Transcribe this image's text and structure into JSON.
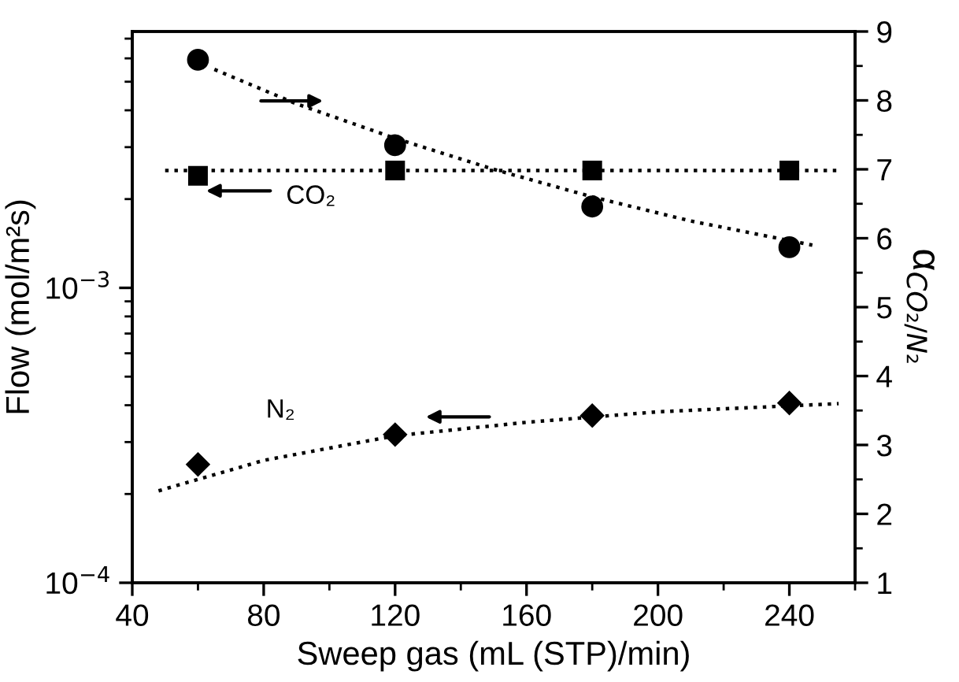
{
  "chart_data": {
    "type": "scatter",
    "xlabel": "Sweep gas (mL (STP)/min)",
    "ylabel": "Flow (mol/m²s)",
    "y2label": "α$_{CO₂/N₂}$",
    "xlim": [
      40,
      260
    ],
    "xticks": [
      40,
      80,
      120,
      160,
      200,
      240
    ],
    "ylim": [
      0.0001,
      0.0074
    ],
    "yticks": [
      {
        "value": 0.0001,
        "label": "10$^{−4}$"
      },
      {
        "value": 0.001,
        "label": "10$^{−3}$"
      }
    ],
    "y2lim": [
      1,
      9
    ],
    "y2ticks": [
      1,
      2,
      3,
      4,
      5,
      6,
      7,
      8,
      9
    ],
    "log": "y",
    "grid": false,
    "legend": false,
    "annotations": [
      "CO₂",
      "N₂"
    ],
    "series": [
      {
        "marker": "square",
        "color": "#000000",
        "x": [
          60,
          120,
          180,
          240
        ],
        "values": [
          0.0024,
          0.0025,
          0.0025,
          0.0025
        ]
      },
      {
        "marker": "diamond",
        "color": "#000000",
        "x": [
          60,
          120,
          180,
          240
        ],
        "values": [
          0.000252,
          0.000318,
          0.000369,
          0.000407
        ]
      },
      {
        "marker": "circle",
        "color": "#000000",
        "axis": "y2",
        "x": [
          60,
          120,
          180,
          240
        ],
        "values": [
          8.59,
          7.35,
          6.46,
          5.87
        ]
      },
      {
        "type": "line",
        "line_style": "dotted",
        "marker": "none",
        "color": "#000000",
        "x": [
          50,
          255
        ],
        "values": [
          0.0025,
          0.0025
        ]
      },
      {
        "type": "line",
        "line_style": "dotted",
        "marker": "none",
        "color": "#000000",
        "x": [
          48,
          80,
          120,
          160,
          200,
          255
        ],
        "values": [
          0.000205,
          0.00026,
          0.000315,
          0.00035,
          0.00038,
          0.000405
        ]
      },
      {
        "type": "line",
        "line_style": "dotted",
        "marker": "none",
        "color": "#000000",
        "axis": "y2",
        "x": [
          65,
          90,
          120,
          150,
          180,
          210,
          247
        ],
        "values": [
          8.45,
          7.95,
          7.45,
          7.0,
          6.6,
          6.25,
          5.9
        ]
      }
    ]
  }
}
